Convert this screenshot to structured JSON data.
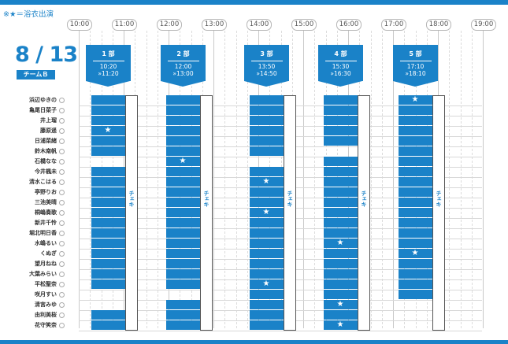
{
  "legend": "※★＝浴衣出演",
  "date": "8 / 13",
  "team": "チームＢ",
  "hours": [
    "10:00",
    "11:00",
    "12:00",
    "13:00",
    "14:00",
    "15:00",
    "16:00",
    "17:00",
    "18:00",
    "19:00"
  ],
  "members": [
    "浜辺ゆきの",
    "亀尾日菜子",
    "井上瑠",
    "藤原遥",
    "日浦菜緒",
    "鈴木南帆",
    "石橋なな",
    "今井楓未",
    "清水こはる",
    "亭野りお",
    "三池美晴",
    "桐嶋奏歌",
    "新井千怜",
    "堀北明日香",
    "水嶋るい",
    "くぬぎ",
    "望月ねね",
    "大葉みらい",
    "平松聖奈",
    "咲月すい",
    "清宮みゆ",
    "由利美桜",
    "花守笑奈"
  ],
  "cheki_label": "チェキ",
  "parts": [
    {
      "name": "1 部",
      "start": "10:20",
      "end": "»11:20",
      "slots": [
        0,
        1,
        2,
        3,
        4,
        5,
        7,
        8,
        9,
        10,
        11,
        12,
        13,
        14,
        15,
        16,
        17,
        18,
        21,
        22
      ],
      "stars": [
        3
      ]
    },
    {
      "name": "2 部",
      "start": "12:00",
      "end": "»13:00",
      "slots": [
        0,
        1,
        2,
        3,
        4,
        5,
        6,
        7,
        8,
        9,
        10,
        11,
        12,
        13,
        14,
        15,
        16,
        17,
        18,
        20,
        21,
        22
      ],
      "stars": [
        6
      ]
    },
    {
      "name": "3 部",
      "start": "13:50",
      "end": "»14:50",
      "slots": [
        0,
        1,
        2,
        3,
        4,
        5,
        7,
        8,
        9,
        10,
        11,
        12,
        13,
        14,
        15,
        16,
        17,
        18,
        19,
        20,
        21,
        22
      ],
      "stars": [
        8,
        11,
        18
      ]
    },
    {
      "name": "4 部",
      "start": "15:30",
      "end": "»16:30",
      "slots": [
        0,
        1,
        2,
        3,
        4,
        6,
        7,
        8,
        9,
        10,
        11,
        12,
        13,
        14,
        15,
        16,
        17,
        18,
        19,
        20,
        21,
        22
      ],
      "stars": [
        14,
        20,
        22
      ]
    },
    {
      "name": "5 部",
      "start": "17:10",
      "end": "»18:10",
      "slots": [
        0,
        1,
        2,
        3,
        4,
        5,
        6,
        7,
        8,
        9,
        10,
        11,
        12,
        13,
        14,
        15,
        16,
        17,
        18,
        19
      ],
      "stars": [
        0,
        15
      ]
    }
  ]
}
